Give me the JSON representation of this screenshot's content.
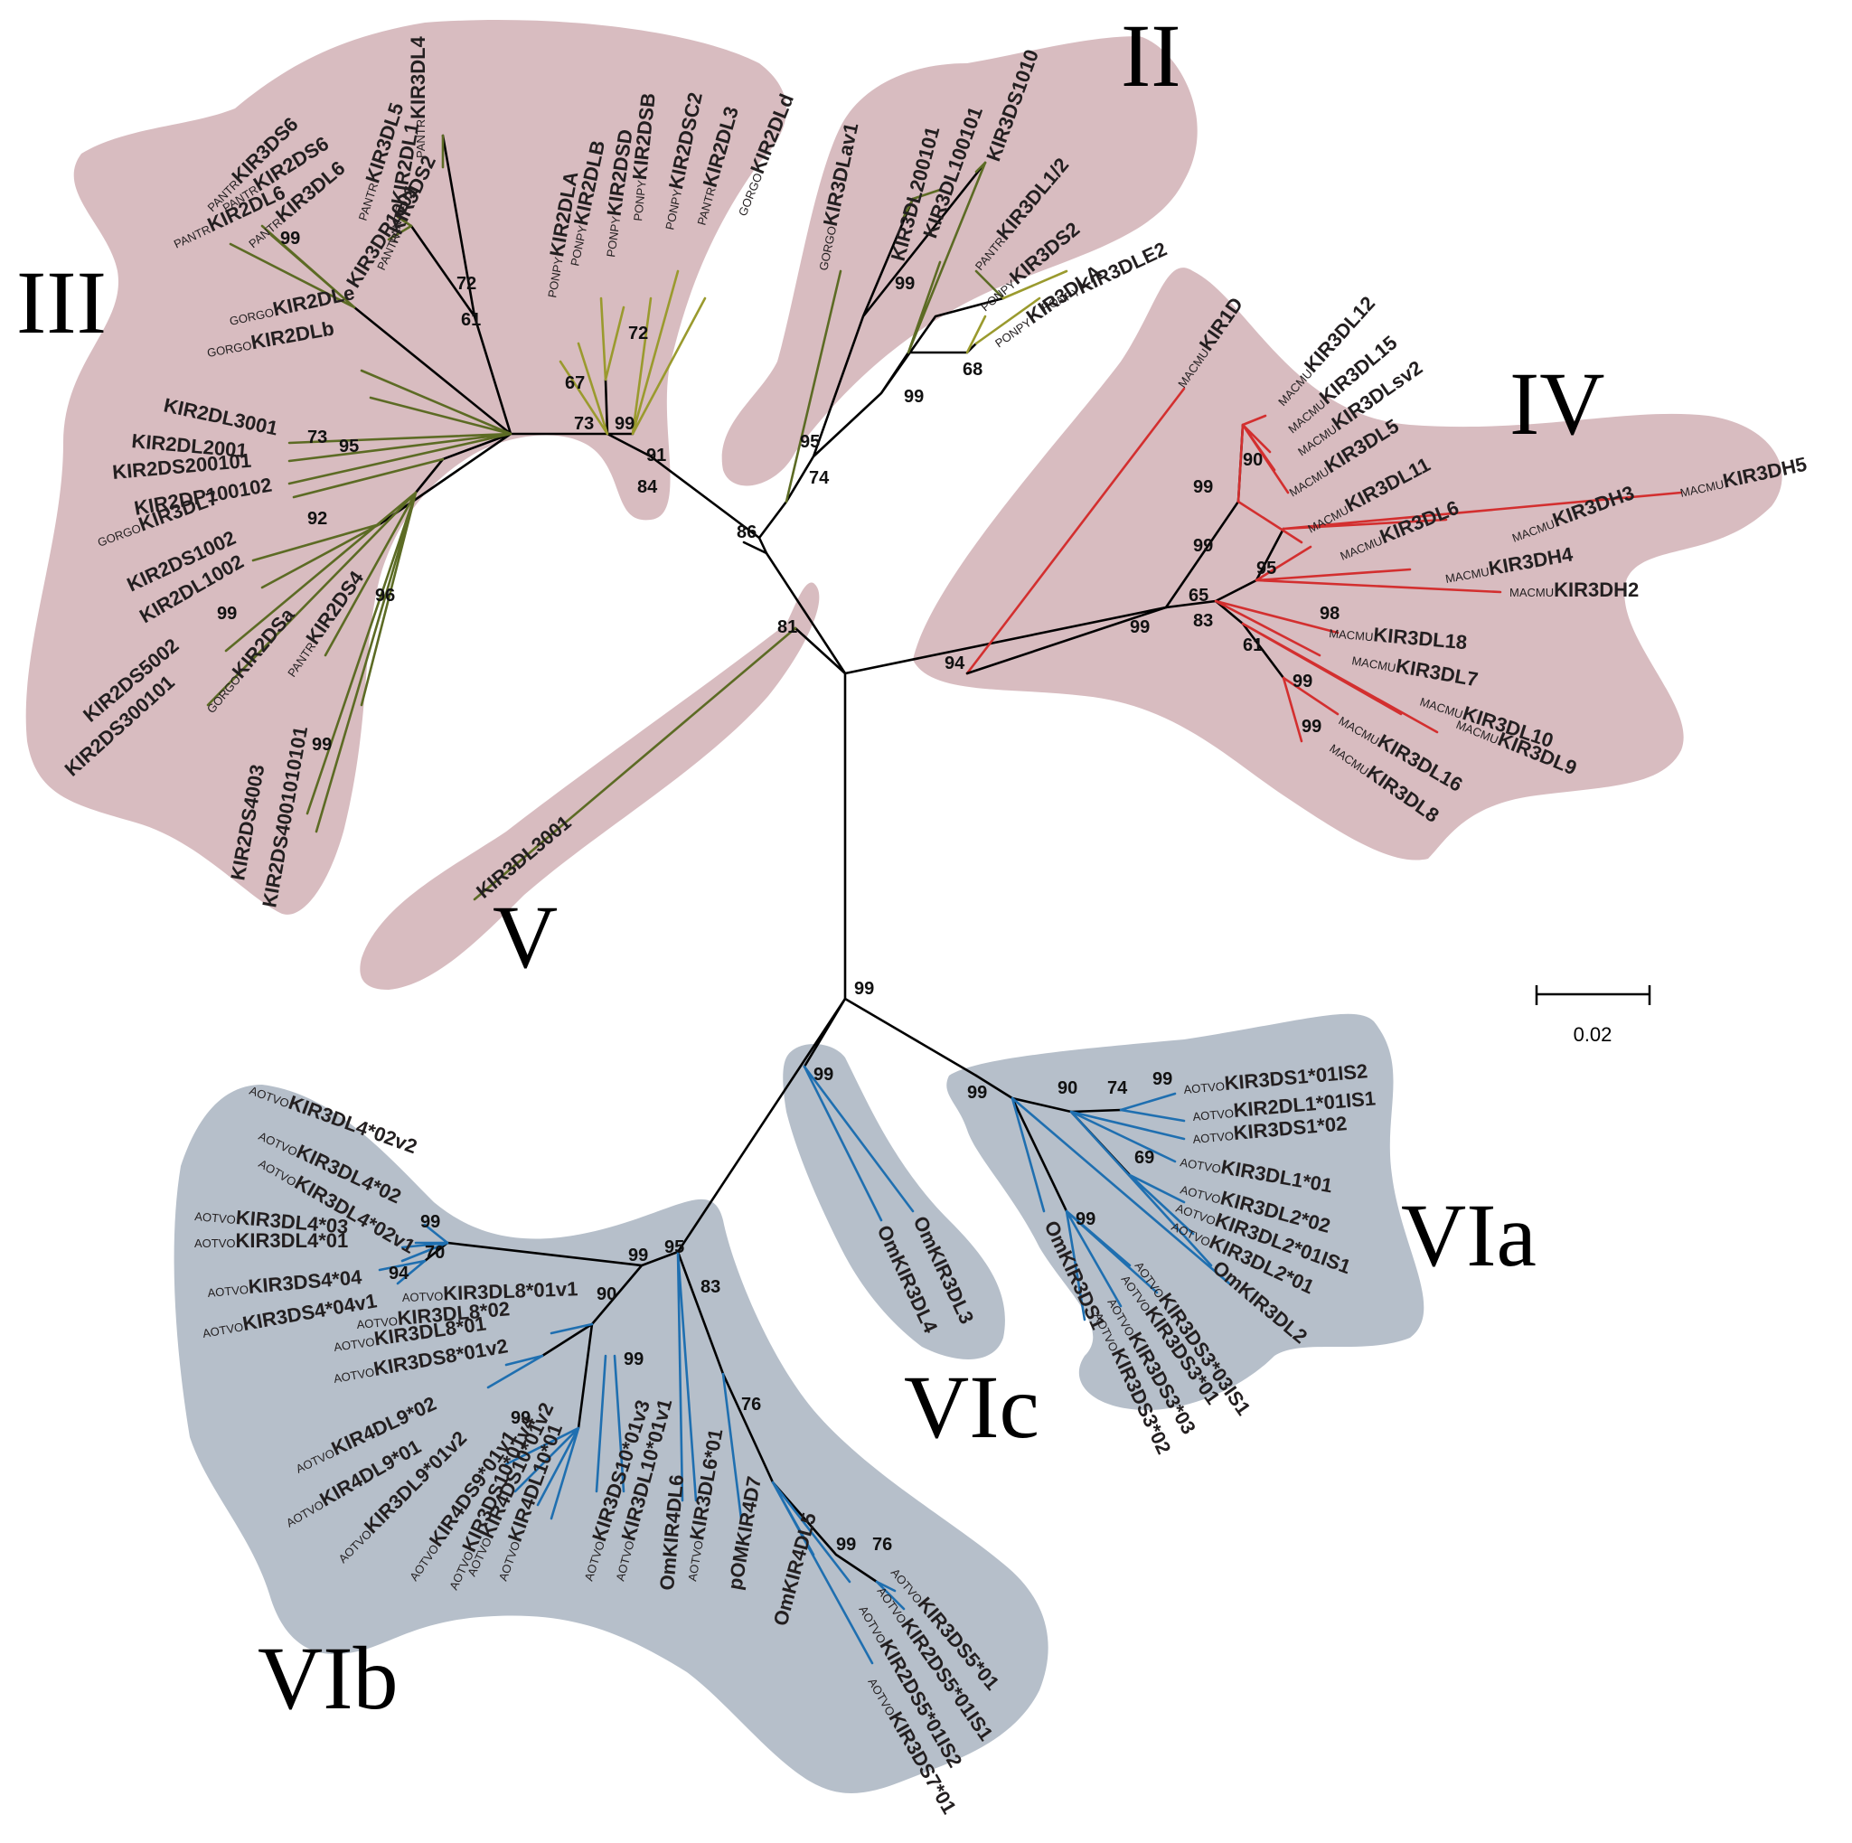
{
  "clade_colors": {
    "great_ape_clade": "#d8bcc0",
    "new_world_monkey_clade": "#b6bfca"
  },
  "branch_colors": {
    "trunk": "#000000",
    "human_chimp": "#5c6b24",
    "orangutan_gorilla": "#9a9a2e",
    "macaque": "#d32f2f",
    "owl_monkey": "#1f6fb0"
  },
  "clade_labels": [
    "III",
    "II",
    "IV",
    "V",
    "VIa",
    "VIb",
    "VIc"
  ],
  "scale_bar_label": "0.02",
  "clades": {
    "III": {
      "bootstrap": [
        "99",
        "72",
        "61",
        "67",
        "73",
        "99",
        "72",
        "91",
        "84",
        "73",
        "95",
        "92",
        "99",
        "96",
        "99"
      ],
      "leaves": [
        {
          "sp": "PANTR",
          "name": "KIR3DL4"
        },
        {
          "sp": "PANTR",
          "name": "KIR2DL1"
        },
        {
          "sp": "PANTR",
          "name": "KIR3DL5"
        },
        {
          "sp": "PANTR",
          "name": "KIR3DS2"
        },
        {
          "sp": "",
          "name": "KIR3DP1001"
        },
        {
          "sp": "PANTR",
          "name": "KIR3DS6"
        },
        {
          "sp": "PANTR",
          "name": "KIR3DL6"
        },
        {
          "sp": "PANTR",
          "name": "KIR2DS6"
        },
        {
          "sp": "PANTR",
          "name": "KIR2DL6"
        },
        {
          "sp": "GORGO",
          "name": "KIR2DLe"
        },
        {
          "sp": "GORGO",
          "name": "KIR2DLb"
        },
        {
          "sp": "",
          "name": "KIR2DL3001"
        },
        {
          "sp": "",
          "name": "KIR2DL2001"
        },
        {
          "sp": "",
          "name": "KIR2DS200101"
        },
        {
          "sp": "",
          "name": "KIR2DP100102"
        },
        {
          "sp": "GORGO",
          "name": "KIR3DL7"
        },
        {
          "sp": "",
          "name": "KIR2DS1002"
        },
        {
          "sp": "",
          "name": "KIR2DL1002"
        },
        {
          "sp": "",
          "name": "KIR2DS5002"
        },
        {
          "sp": "",
          "name": "KIR2DS300101"
        },
        {
          "sp": "GORGO",
          "name": "KIR2DSa"
        },
        {
          "sp": "PANTR",
          "name": "KIR2DS4"
        },
        {
          "sp": "",
          "name": "KIR2DS4003"
        },
        {
          "sp": "",
          "name": "KIR2DS4001010101"
        },
        {
          "sp": "PONPY",
          "name": "KIR2DLA"
        },
        {
          "sp": "PONPY",
          "name": "KIR2DLB"
        },
        {
          "sp": "PONPY",
          "name": "KIR2DSD"
        },
        {
          "sp": "PONPY",
          "name": "KIR2DSB"
        },
        {
          "sp": "PONPY",
          "name": "KIR2DSC2"
        },
        {
          "sp": "PANTR",
          "name": "KIR2DL3"
        },
        {
          "sp": "GORGO",
          "name": "KIR2DLd"
        }
      ]
    },
    "II": {
      "bootstrap": [
        "99",
        "95",
        "74",
        "86",
        "99",
        "68"
      ],
      "leaves": [
        {
          "sp": "GORGO",
          "name": "KIR3DLav1"
        },
        {
          "sp": "",
          "name": "KIR3DL200101"
        },
        {
          "sp": "",
          "name": "KIR3DL100101"
        },
        {
          "sp": "",
          "name": "KIR3DS1010"
        },
        {
          "sp": "PANTR",
          "name": "KIR3DL1/2"
        },
        {
          "sp": "PONPY",
          "name": "KIR3DS2"
        },
        {
          "sp": "PONPY",
          "name": "KIR3DLA"
        },
        {
          "sp": "PONPY",
          "name": "KIR3DLE2"
        }
      ]
    },
    "IV": {
      "bootstrap": [
        "90",
        "99",
        "99",
        "95",
        "65",
        "99",
        "83",
        "94",
        "98",
        "61",
        "99",
        "99"
      ],
      "leaves": [
        {
          "sp": "MACMU",
          "name": "KIR1D"
        },
        {
          "sp": "MACMU",
          "name": "KIR3DL12"
        },
        {
          "sp": "MACMU",
          "name": "KIR3DL15"
        },
        {
          "sp": "MACMU",
          "name": "KIR3DLsv2"
        },
        {
          "sp": "MACMU",
          "name": "KIR3DL5"
        },
        {
          "sp": "MACMU",
          "name": "KIR3DL11"
        },
        {
          "sp": "MACMU",
          "name": "KIR3DL6"
        },
        {
          "sp": "MACMU",
          "name": "KIR3DH3"
        },
        {
          "sp": "MACMU",
          "name": "KIR3DH5"
        },
        {
          "sp": "MACMU",
          "name": "KIR3DH4"
        },
        {
          "sp": "MACMU",
          "name": "KIR3DH2"
        },
        {
          "sp": "MACMU",
          "name": "KIR3DL18"
        },
        {
          "sp": "MACMU",
          "name": "KIR3DL7"
        },
        {
          "sp": "MACMU",
          "name": "KIR3DL10"
        },
        {
          "sp": "MACMU",
          "name": "KIR3DL9"
        },
        {
          "sp": "MACMU",
          "name": "KIR3DL16"
        },
        {
          "sp": "MACMU",
          "name": "KIR3DL8"
        }
      ]
    },
    "V": {
      "bootstrap": [
        "81"
      ],
      "leaves": [
        {
          "sp": "",
          "name": "KIR3DL3001"
        }
      ]
    },
    "root_bootstrap": "99",
    "VIa": {
      "bootstrap": [
        "99",
        "99",
        "90",
        "74",
        "69",
        "99"
      ],
      "leaves": [
        {
          "sp": "AOTVO",
          "name": "KIR3DS1*01IS2"
        },
        {
          "sp": "AOTVO",
          "name": "KIR2DL1*01IS1"
        },
        {
          "sp": "AOTVO",
          "name": "KIR3DS1*02"
        },
        {
          "sp": "AOTVO",
          "name": "KIR3DL1*01"
        },
        {
          "sp": "AOTVO",
          "name": "KIR3DL2*02"
        },
        {
          "sp": "AOTVO",
          "name": "KIR3DL2*01IS1"
        },
        {
          "sp": "AOTVO",
          "name": "KIR3DL2*01"
        },
        {
          "sp": "",
          "name": "OmKIR3DL2"
        },
        {
          "sp": "AOTVO",
          "name": "KIR3DS3*03IS1"
        },
        {
          "sp": "AOTVO",
          "name": "KIR3DS3*01"
        },
        {
          "sp": "AOTVO",
          "name": "KIR3DS3*03"
        },
        {
          "sp": "AOTVO",
          "name": "KIR3DS3*02"
        },
        {
          "sp": "",
          "name": "OmKIR3DS1"
        }
      ]
    },
    "VIc": {
      "bootstrap": [
        "99"
      ],
      "leaves": [
        {
          "sp": "",
          "name": "OmKIR3DL4"
        },
        {
          "sp": "",
          "name": "OmKIR3DL3"
        }
      ]
    },
    "VIb": {
      "bootstrap": [
        "99",
        "70",
        "94",
        "99",
        "90",
        "95",
        "83",
        "99",
        "99",
        "76",
        "99",
        "76"
      ],
      "leaves": [
        {
          "sp": "AOTVO",
          "name": "KIR3DL4*02v2"
        },
        {
          "sp": "AOTVO",
          "name": "KIR3DL4*02"
        },
        {
          "sp": "AOTVO",
          "name": "KIR3DL4*02v1"
        },
        {
          "sp": "AOTVO",
          "name": "KIR3DL4*03"
        },
        {
          "sp": "AOTVO",
          "name": "KIR3DL4*01"
        },
        {
          "sp": "AOTVO",
          "name": "KIR3DS4*04"
        },
        {
          "sp": "AOTVO",
          "name": "KIR3DS4*04v1"
        },
        {
          "sp": "AOTVO",
          "name": "KIR3DL8*01v1"
        },
        {
          "sp": "AOTVO",
          "name": "KIR3DL8*02"
        },
        {
          "sp": "AOTVO",
          "name": "KIR3DL8*01"
        },
        {
          "sp": "AOTVO",
          "name": "KIR3DS8*01v2"
        },
        {
          "sp": "AOTVO",
          "name": "KIR4DL9*02"
        },
        {
          "sp": "AOTVO",
          "name": "KIR4DL9*01"
        },
        {
          "sp": "AOTVO",
          "name": "KIR3DL9*01v2"
        },
        {
          "sp": "AOTVO",
          "name": "KIR4DS9*01v1"
        },
        {
          "sp": "AOTVO",
          "name": "KIR3DS10*01v4"
        },
        {
          "sp": "AOTVO",
          "name": "KIR4DS10*01v2"
        },
        {
          "sp": "AOTVO",
          "name": "KIR4DL10*01"
        },
        {
          "sp": "AOTVO",
          "name": "KIR3DS10*01v3"
        },
        {
          "sp": "AOTVO",
          "name": "KIR3DL10*01v1"
        },
        {
          "sp": "",
          "name": "OmKIR4DL6"
        },
        {
          "sp": "AOTVO",
          "name": "KIR3DL6*01"
        },
        {
          "sp": "",
          "name": "pOMKIR4D7"
        },
        {
          "sp": "",
          "name": "OmKIR4DL5"
        },
        {
          "sp": "AOTVO",
          "name": "KIR2DS5*01IS2"
        },
        {
          "sp": "AOTVO",
          "name": "KIR2DS5*01IS1"
        },
        {
          "sp": "AOTVO",
          "name": "KIR3DS5*01"
        },
        {
          "sp": "AOTVO",
          "name": "KIR3DS7*01"
        }
      ]
    }
  }
}
